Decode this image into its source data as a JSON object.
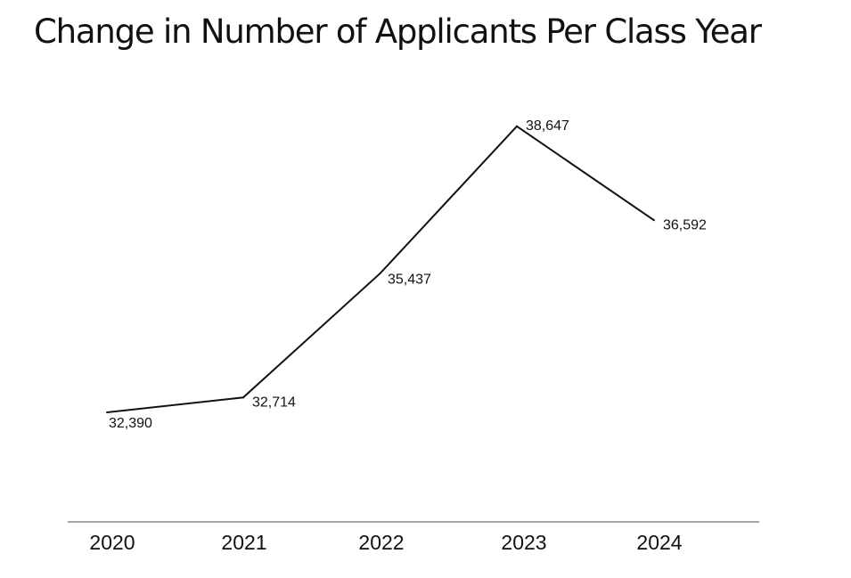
{
  "chart_data": {
    "type": "line",
    "title": "Change in Number of Applicants Per Class Year",
    "xlabel": "",
    "ylabel": "",
    "categories": [
      "2020",
      "2021",
      "2022",
      "2023",
      "2024"
    ],
    "series": [
      {
        "values": [
          32390,
          32714,
          35437,
          38647,
          36592
        ],
        "labels": [
          "32,390",
          "32,714",
          "35,437",
          "38,647",
          "36,592"
        ]
      }
    ],
    "ylim": [
      30500,
      39500
    ],
    "grid": false,
    "legend": "none",
    "colors": {
      "line": "#111111",
      "axis": "#888888",
      "text": "#111111"
    }
  }
}
